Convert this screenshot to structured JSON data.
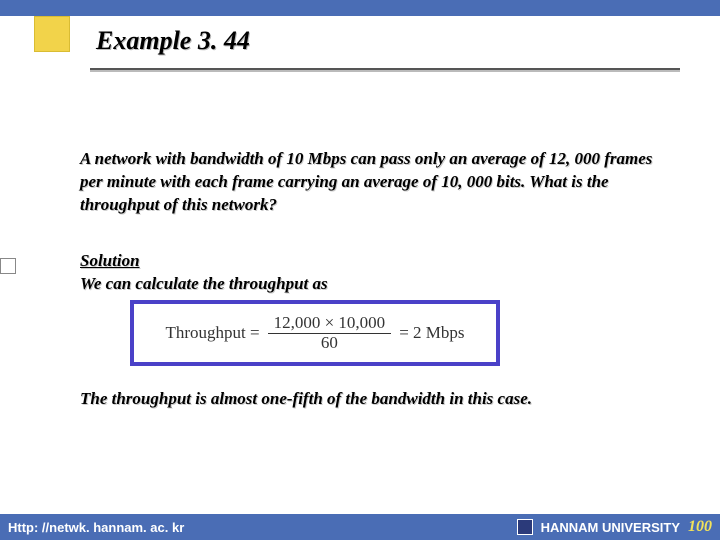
{
  "title": "Example 3. 44",
  "problem": "A network with bandwidth of 10 Mbps can pass only an average of 12, 000 frames per minute with each frame carrying an average of 10, 000 bits. What is the throughput of this network?",
  "solution_label": "Solution",
  "solution_text": "We can calculate the throughput as",
  "formula": {
    "lhs": "Throughput =",
    "numerator": "12,000 × 10,000",
    "denominator": "60",
    "rhs": "= 2 Mbps"
  },
  "conclusion": "The throughput is almost one-fifth of the bandwidth in this case.",
  "footer": {
    "url": "Http: //netwk. hannam. ac. kr",
    "org": "HANNAM  UNIVERSITY",
    "page": "100"
  },
  "colors": {
    "header_bar": "#4a6db5",
    "title_square": "#f2d34a",
    "formula_border": "#4a41c8",
    "page_num": "#f2e25a"
  }
}
